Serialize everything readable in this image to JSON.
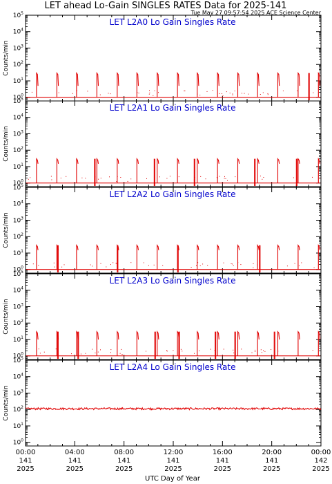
{
  "title": "LET ahead Lo-Gain SINGLES RATES Data for 2025-141",
  "timestamp": "Tue May 27 09:57:54 2025 ACE Science Center",
  "xlabel": "UTC Day of Year",
  "ylabel": "Counts/min",
  "colors": {
    "data": "#e00000",
    "panel_title": "#0000cc",
    "axis": "#000000"
  },
  "x_ticks": [
    {
      "time": "00:00",
      "day": "141",
      "year": "2025"
    },
    {
      "time": "04:00",
      "day": "141",
      "year": "2025"
    },
    {
      "time": "08:00",
      "day": "141",
      "year": "2025"
    },
    {
      "time": "12:00",
      "day": "141",
      "year": "2025"
    },
    {
      "time": "16:00",
      "day": "141",
      "year": "2025"
    },
    {
      "time": "20:00",
      "day": "141",
      "year": "2025"
    },
    {
      "time": "00:00",
      "day": "142",
      "year": "2025"
    }
  ],
  "y_tick_labels": [
    "10^0",
    "10^1",
    "10^2",
    "10^3",
    "10^4",
    "10^5"
  ],
  "chart_data": [
    {
      "type": "line",
      "title": "LET L2A0 Lo Gain Singles Rate",
      "yscale": "log",
      "ylim": [
        0.6,
        100000
      ],
      "xlim_hours": [
        0,
        24
      ],
      "baseline": 1,
      "spike_peak": 30,
      "spike_low": 5,
      "spikes_hours": [
        0.95,
        2.6,
        4.2,
        5.85,
        7.5,
        9.1,
        10.75,
        12.4,
        14.0,
        15.65,
        17.3,
        18.9,
        20.55,
        22.2,
        23.85
      ],
      "tall_drops_hours": [
        23.0
      ]
    },
    {
      "type": "line",
      "title": "LET L2A1 Lo Gain Singles Rate",
      "yscale": "log",
      "ylim": [
        0.6,
        100000
      ],
      "xlim_hours": [
        0,
        24
      ],
      "baseline": 1,
      "spike_peak": 30,
      "spike_low": 15,
      "spikes_hours": [
        0.95,
        2.6,
        4.2,
        5.85,
        7.5,
        9.1,
        10.75,
        12.4,
        14.0,
        15.65,
        17.3,
        18.9,
        20.55,
        22.2,
        23.85
      ],
      "tall_drops_hours": [
        5.6,
        10.45,
        13.7,
        18.6,
        22.0
      ]
    },
    {
      "type": "line",
      "title": "LET L2A2 Lo Gain Singles Rate",
      "yscale": "log",
      "ylim": [
        0.6,
        100000
      ],
      "xlim_hours": [
        0,
        24
      ],
      "baseline": 1,
      "spike_peak": 30,
      "spike_low": 15,
      "spikes_hours": [
        0.95,
        2.6,
        4.2,
        5.85,
        7.5,
        9.1,
        10.75,
        12.4,
        14.0,
        15.65,
        17.3,
        18.9,
        20.55,
        22.2,
        23.85
      ],
      "tall_drops_hours": [
        2.6,
        7.45,
        12.35,
        19.0
      ]
    },
    {
      "type": "line",
      "title": "LET L2A3 Lo Gain Singles Rate",
      "yscale": "log",
      "ylim": [
        0.6,
        100000
      ],
      "xlim_hours": [
        0,
        24
      ],
      "baseline": 1,
      "spike_peak": 30,
      "spike_low": 10,
      "spikes_hours": [
        0.95,
        2.6,
        4.2,
        5.85,
        7.5,
        9.1,
        10.75,
        12.4,
        14.0,
        15.65,
        17.3,
        18.9,
        20.55,
        22.2,
        23.85
      ],
      "tall_drops_hours": [
        2.6,
        4.25,
        10.5,
        12.45,
        15.4,
        17.0,
        20.2
      ]
    },
    {
      "type": "line",
      "title": "LET L2A4 Lo Gain Singles Rate",
      "yscale": "log",
      "ylim": [
        0.6,
        100000
      ],
      "xlim_hours": [
        0,
        24
      ],
      "baseline": 110,
      "spike_peak": 130,
      "spike_low": 100,
      "spikes_hours": [],
      "tall_drops_hours": []
    }
  ]
}
